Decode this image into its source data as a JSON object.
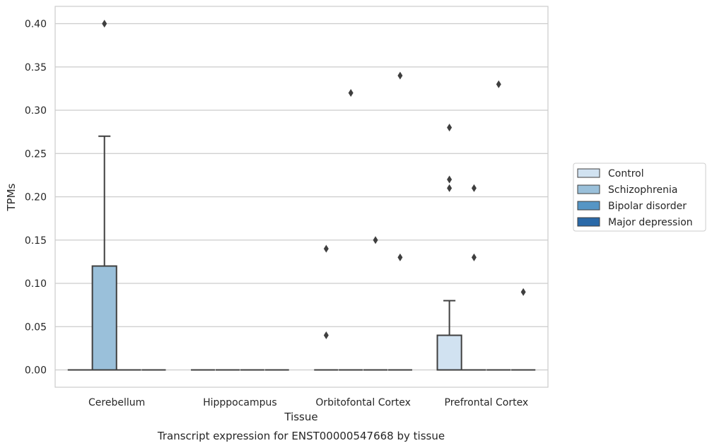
{
  "chart_data": {
    "type": "box",
    "title": "",
    "caption": "Transcript expression for ENST00000547668 by tissue",
    "xlabel": "Tissue",
    "ylabel": "TPMs",
    "ylim": [
      -0.02,
      0.42
    ],
    "yticks": [
      0.0,
      0.05,
      0.1,
      0.15,
      0.2,
      0.25,
      0.3,
      0.35,
      0.4
    ],
    "ytick_labels": [
      "0.00",
      "0.05",
      "0.10",
      "0.15",
      "0.20",
      "0.25",
      "0.30",
      "0.35",
      "0.40"
    ],
    "grid": "horizontal",
    "legend_position": "right",
    "categories": [
      "Cerebellum",
      "Hipppocampus",
      "Orbitofontal Cortex",
      "Prefrontal Cortex"
    ],
    "series": [
      {
        "name": "Control",
        "color": "#d1e2f1",
        "boxes": [
          {
            "q1": 0,
            "median": 0,
            "q3": 0,
            "whisker_low": 0,
            "whisker_high": 0,
            "outliers": []
          },
          {
            "q1": 0,
            "median": 0,
            "q3": 0,
            "whisker_low": 0,
            "whisker_high": 0,
            "outliers": []
          },
          {
            "q1": 0,
            "median": 0,
            "q3": 0,
            "whisker_low": 0,
            "whisker_high": 0,
            "outliers": [
              0.14,
              0.04
            ]
          },
          {
            "q1": 0,
            "median": 0,
            "q3": 0.04,
            "whisker_low": 0,
            "whisker_high": 0.08,
            "outliers": [
              0.28,
              0.22,
              0.21
            ]
          }
        ]
      },
      {
        "name": "Schizophrenia",
        "color": "#9ac0da",
        "boxes": [
          {
            "q1": 0,
            "median": 0,
            "q3": 0.12,
            "whisker_low": 0,
            "whisker_high": 0.27,
            "outliers": [
              0.4
            ]
          },
          {
            "q1": 0,
            "median": 0,
            "q3": 0,
            "whisker_low": 0,
            "whisker_high": 0,
            "outliers": []
          },
          {
            "q1": 0,
            "median": 0,
            "q3": 0,
            "whisker_low": 0,
            "whisker_high": 0,
            "outliers": [
              0.32
            ]
          },
          {
            "q1": 0,
            "median": 0,
            "q3": 0,
            "whisker_low": 0,
            "whisker_high": 0,
            "outliers": [
              0.21,
              0.13
            ]
          }
        ]
      },
      {
        "name": "Bipolar disorder",
        "color": "#5595c5",
        "boxes": [
          {
            "q1": 0,
            "median": 0,
            "q3": 0,
            "whisker_low": 0,
            "whisker_high": 0,
            "outliers": []
          },
          {
            "q1": 0,
            "median": 0,
            "q3": 0,
            "whisker_low": 0,
            "whisker_high": 0,
            "outliers": []
          },
          {
            "q1": 0,
            "median": 0,
            "q3": 0,
            "whisker_low": 0,
            "whisker_high": 0,
            "outliers": [
              0.15
            ]
          },
          {
            "q1": 0,
            "median": 0,
            "q3": 0,
            "whisker_low": 0,
            "whisker_high": 0,
            "outliers": [
              0.33
            ]
          }
        ]
      },
      {
        "name": "Major depression",
        "color": "#2a69a8",
        "boxes": [
          {
            "q1": 0,
            "median": 0,
            "q3": 0,
            "whisker_low": 0,
            "whisker_high": 0,
            "outliers": []
          },
          {
            "q1": 0,
            "median": 0,
            "q3": 0,
            "whisker_low": 0,
            "whisker_high": 0,
            "outliers": []
          },
          {
            "q1": 0,
            "median": 0,
            "q3": 0,
            "whisker_low": 0,
            "whisker_high": 0,
            "outliers": [
              0.34,
              0.13
            ]
          },
          {
            "q1": 0,
            "median": 0,
            "q3": 0,
            "whisker_low": 0,
            "whisker_high": 0,
            "outliers": [
              0.09
            ]
          }
        ]
      }
    ]
  }
}
